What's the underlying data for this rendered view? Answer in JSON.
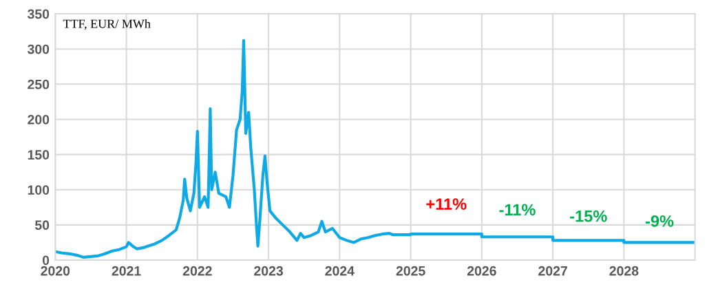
{
  "chart_data": {
    "type": "line",
    "title": "TTF, EUR/ MWh",
    "x": [
      2020.0,
      2020.1,
      2020.2,
      2020.3,
      2020.4,
      2020.5,
      2020.6,
      2020.7,
      2020.8,
      2020.9,
      2021.0,
      2021.03,
      2021.1,
      2021.15,
      2021.25,
      2021.4,
      2021.5,
      2021.6,
      2021.7,
      2021.75,
      2021.8,
      2021.82,
      2021.85,
      2021.9,
      2021.95,
      2021.98,
      2022.0,
      2022.03,
      2022.1,
      2022.15,
      2022.18,
      2022.2,
      2022.25,
      2022.3,
      2022.4,
      2022.45,
      2022.5,
      2022.55,
      2022.6,
      2022.63,
      2022.65,
      2022.68,
      2022.72,
      2022.75,
      2022.8,
      2022.83,
      2022.85,
      2022.88,
      2022.92,
      2022.95,
      2022.98,
      2023.02,
      2023.1,
      2023.2,
      2023.3,
      2023.4,
      2023.45,
      2023.5,
      2023.6,
      2023.7,
      2023.75,
      2023.8,
      2023.9,
      2024.0,
      2024.1,
      2024.2,
      2024.3,
      2024.4,
      2024.5,
      2024.6,
      2024.7,
      2024.75,
      2025.0,
      2025.0,
      2026.0,
      2026.0,
      2027.0,
      2027.0,
      2028.0,
      2028.0,
      2029.0
    ],
    "series": [
      {
        "color": "#0fa9e6",
        "values": [
          12,
          10,
          9,
          7,
          4,
          5,
          6,
          9,
          13,
          15,
          19,
          25,
          19,
          16,
          18,
          23,
          28,
          35,
          43,
          60,
          85,
          115,
          88,
          70,
          95,
          140,
          183,
          75,
          90,
          75,
          215,
          100,
          125,
          95,
          90,
          75,
          120,
          185,
          200,
          240,
          312,
          180,
          210,
          160,
          100,
          50,
          20,
          60,
          120,
          148,
          110,
          70,
          60,
          50,
          40,
          28,
          38,
          32,
          35,
          40,
          55,
          40,
          45,
          32,
          28,
          25,
          30,
          32,
          35,
          37,
          38,
          36,
          36,
          37,
          37,
          33,
          33,
          28,
          28,
          25,
          25
        ]
      }
    ],
    "xlim": [
      2020,
      2029
    ],
    "xticks": [
      2020,
      2021,
      2022,
      2023,
      2024,
      2025,
      2026,
      2027,
      2028
    ],
    "ylim": [
      0,
      350
    ],
    "yticks": [
      0,
      50,
      100,
      150,
      200,
      250,
      300,
      350
    ],
    "grid": true,
    "annotations": [
      "+11%",
      "-11%",
      "-15%",
      "-9%"
    ]
  }
}
